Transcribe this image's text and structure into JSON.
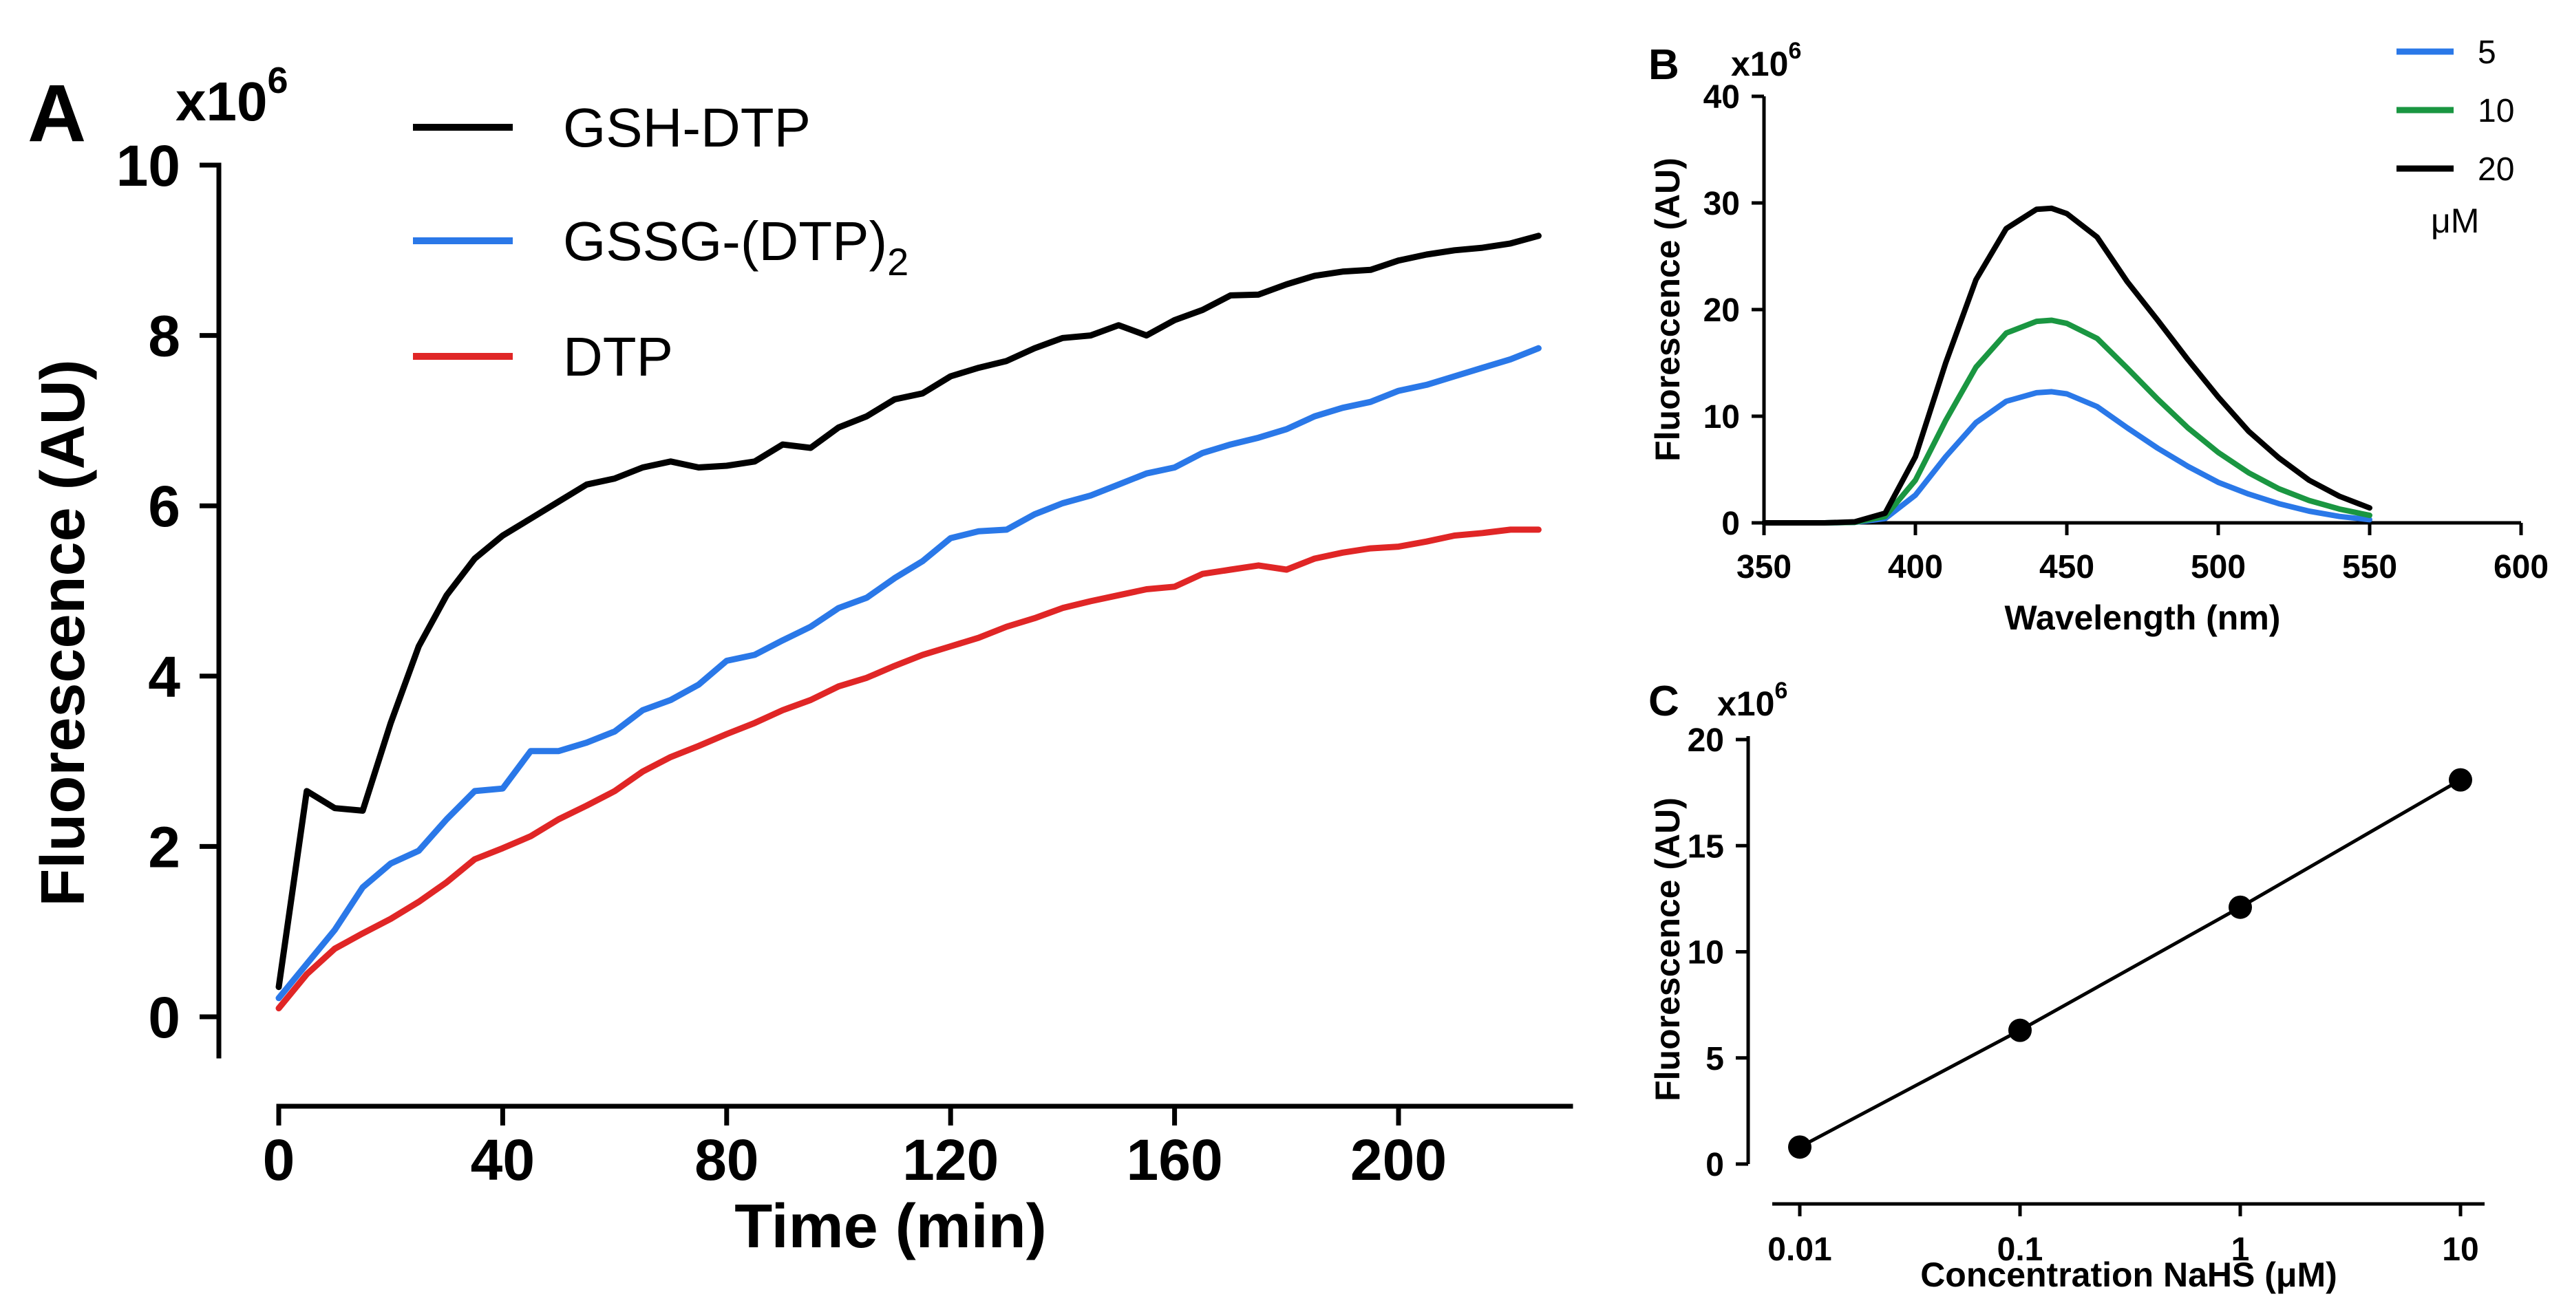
{
  "chart_data": [
    {
      "panel": "A",
      "type": "line",
      "title": "",
      "xlabel": "Time (min)",
      "ylabel": "Fluorescence (AU)",
      "y_multiplier_label": "x10",
      "y_multiplier_exp": "6",
      "xlim": [
        -8,
        225
      ],
      "ylim": [
        -0.3,
        10
      ],
      "xticks": [
        0,
        40,
        80,
        120,
        160,
        200
      ],
      "yticks": [
        0,
        2,
        4,
        6,
        8,
        10
      ],
      "x": [
        0,
        5,
        10,
        15,
        20,
        25,
        30,
        35,
        40,
        45,
        50,
        55,
        60,
        65,
        70,
        75,
        80,
        85,
        90,
        95,
        100,
        105,
        110,
        115,
        120,
        125,
        130,
        135,
        140,
        145,
        150,
        155,
        160,
        165,
        170,
        175,
        180,
        185,
        190,
        195,
        200,
        205,
        210,
        215,
        220,
        225
      ],
      "series": [
        {
          "name": "GSH-DTP",
          "name_sub": "",
          "color": "#000000",
          "values": [
            0.35,
            2.65,
            2.45,
            2.42,
            3.45,
            4.35,
            4.95,
            5.38,
            5.65,
            5.85,
            6.05,
            6.25,
            6.32,
            6.45,
            6.52,
            6.45,
            6.47,
            6.52,
            6.72,
            6.68,
            6.92,
            7.05,
            7.25,
            7.32,
            7.52,
            7.62,
            7.7,
            7.85,
            7.97,
            8.0,
            8.12,
            8.0,
            8.18,
            8.3,
            8.47,
            8.48,
            8.6,
            8.7,
            8.75,
            8.77,
            8.88,
            8.95,
            9.0,
            9.03,
            9.08,
            9.17
          ]
        },
        {
          "name": "GSSG-(DTP)",
          "name_sub": "2",
          "color": "#2a78e8",
          "values": [
            0.22,
            0.62,
            1.02,
            1.52,
            1.8,
            1.95,
            2.32,
            2.65,
            2.68,
            3.12,
            3.12,
            3.22,
            3.35,
            3.6,
            3.72,
            3.9,
            4.18,
            4.25,
            4.42,
            4.58,
            4.8,
            4.92,
            5.15,
            5.35,
            5.62,
            5.7,
            5.72,
            5.9,
            6.03,
            6.12,
            6.25,
            6.38,
            6.45,
            6.62,
            6.72,
            6.8,
            6.9,
            7.05,
            7.15,
            7.22,
            7.35,
            7.42,
            7.52,
            7.62,
            7.72,
            7.85
          ]
        },
        {
          "name": "DTP",
          "name_sub": "",
          "color": "#e02626",
          "values": [
            0.1,
            0.5,
            0.8,
            0.98,
            1.15,
            1.35,
            1.58,
            1.85,
            1.98,
            2.12,
            2.32,
            2.48,
            2.65,
            2.88,
            3.05,
            3.18,
            3.32,
            3.45,
            3.6,
            3.72,
            3.88,
            3.98,
            4.12,
            4.25,
            4.35,
            4.45,
            4.58,
            4.68,
            4.8,
            4.88,
            4.95,
            5.02,
            5.05,
            5.2,
            5.25,
            5.3,
            5.25,
            5.38,
            5.45,
            5.5,
            5.52,
            5.58,
            5.65,
            5.68,
            5.72,
            5.72
          ]
        }
      ]
    },
    {
      "panel": "B",
      "type": "line",
      "title": "",
      "xlabel": "Wavelength (nm)",
      "ylabel": "Fluorescence (AU)",
      "y_multiplier_label": "x10",
      "y_multiplier_exp": "6",
      "xlim": [
        350,
        600
      ],
      "ylim": [
        0,
        40
      ],
      "xticks": [
        350,
        400,
        450,
        500,
        550,
        600
      ],
      "yticks": [
        0,
        10,
        20,
        30,
        40
      ],
      "x": [
        350,
        360,
        370,
        380,
        390,
        400,
        410,
        420,
        430,
        440,
        445,
        450,
        460,
        470,
        480,
        490,
        500,
        510,
        520,
        530,
        540,
        550
      ],
      "legend_unit": "μM",
      "series": [
        {
          "name": "5",
          "color": "#2a78e8",
          "values": [
            0,
            0,
            0,
            0.05,
            0.4,
            2.6,
            6.2,
            9.4,
            11.4,
            12.2,
            12.3,
            12.1,
            10.9,
            8.9,
            7.0,
            5.3,
            3.8,
            2.7,
            1.8,
            1.1,
            0.6,
            0.3
          ]
        },
        {
          "name": "10",
          "color": "#1a9641",
          "values": [
            0,
            0,
            0,
            0.05,
            0.6,
            4.0,
            9.6,
            14.6,
            17.8,
            18.9,
            19.0,
            18.7,
            17.3,
            14.5,
            11.6,
            8.9,
            6.6,
            4.7,
            3.2,
            2.1,
            1.3,
            0.7
          ]
        },
        {
          "name": "20",
          "color": "#000000",
          "values": [
            0,
            0,
            0,
            0.1,
            0.9,
            6.2,
            15.0,
            22.8,
            27.6,
            29.4,
            29.5,
            29.0,
            26.8,
            22.6,
            19.0,
            15.3,
            11.8,
            8.6,
            6.1,
            4.0,
            2.5,
            1.4
          ]
        }
      ]
    },
    {
      "panel": "C",
      "type": "scatter",
      "title": "",
      "xlabel": "Concentration NaHS (μM)",
      "ylabel": "Fluorescence (AU)",
      "y_multiplier_label": "x10",
      "y_multiplier_exp": "6",
      "x_scale": "log",
      "xlim": [
        0.01,
        10
      ],
      "ylim": [
        0,
        20
      ],
      "xticks": [
        "0.01",
        "0.1",
        "1",
        "10"
      ],
      "yticks": [
        0,
        5,
        10,
        15,
        20
      ],
      "x": [
        0.01,
        0.1,
        1,
        10
      ],
      "values": [
        0.8,
        6.3,
        12.1,
        18.1
      ],
      "fit_line": true
    }
  ],
  "panels": {
    "A": "A",
    "B": "B",
    "C": "C"
  }
}
